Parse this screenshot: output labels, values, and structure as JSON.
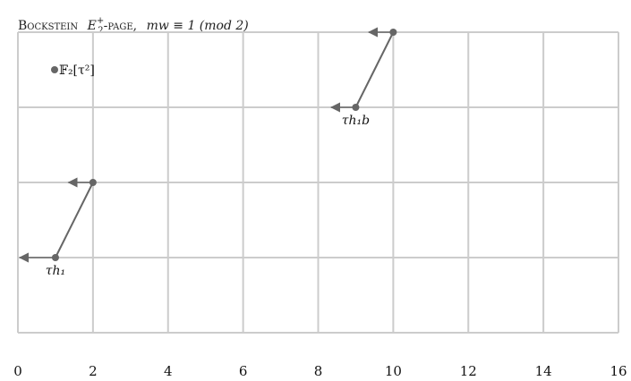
{
  "title": {
    "small_caps": "Bockstein",
    "math": "E",
    "sub": "2",
    "sup": "+",
    "page_word": "-page,",
    "condition": "mw ≡ 1 (mod 2)"
  },
  "legend": {
    "text": "𝔽₂[τ²]"
  },
  "x_axis": {
    "ticks": [
      "0",
      "2",
      "4",
      "6",
      "8",
      "10",
      "12",
      "14",
      "16"
    ]
  },
  "chart_data": {
    "type": "scatter",
    "xlim": [
      0,
      16
    ],
    "ylim": [
      0,
      4
    ],
    "grid": true,
    "x_tick_step": 2,
    "y_tick_step": 1,
    "points": [
      {
        "x": 1,
        "y": 1,
        "label": "τh₁"
      },
      {
        "x": 2,
        "y": 2,
        "label": ""
      },
      {
        "x": 9,
        "y": 3,
        "label": "τh₁b"
      },
      {
        "x": 10,
        "y": 4,
        "label": ""
      }
    ],
    "lines": [
      {
        "from": [
          1,
          1
        ],
        "to": [
          2,
          2
        ]
      },
      {
        "from": [
          9,
          3
        ],
        "to": [
          10,
          4
        ]
      }
    ],
    "arrows": [
      {
        "from": [
          1,
          1
        ],
        "to": [
          0,
          1
        ]
      },
      {
        "from": [
          2,
          2
        ],
        "to": [
          1.3,
          2
        ]
      },
      {
        "from": [
          9,
          3
        ],
        "to": [
          8.3,
          3
        ]
      },
      {
        "from": [
          10,
          4
        ],
        "to": [
          9.3,
          4
        ]
      }
    ],
    "legend_marker": {
      "x": 1,
      "y": 7
    }
  },
  "colors": {
    "grid": "#cccccc",
    "mark": "#666666",
    "text": "#111111"
  }
}
